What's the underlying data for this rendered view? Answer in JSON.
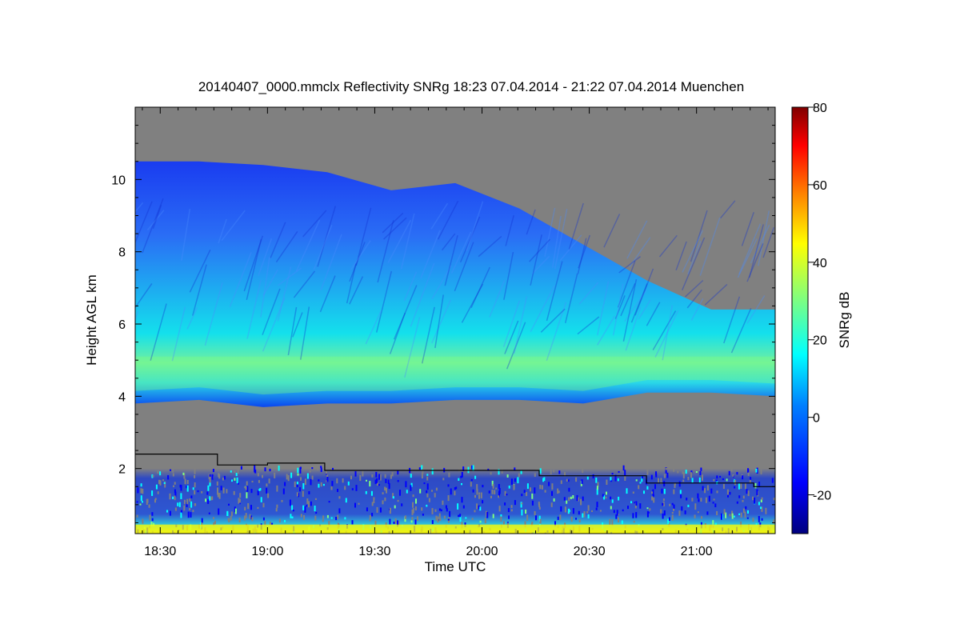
{
  "chart_data": {
    "type": "heatmap",
    "title": "20140407_0000.mmclx Reflectivity SNRg   18:23 07.04.2014 - 21:22 07.04.2014 Muenchen",
    "xlabel": "Time UTC",
    "ylabel": "Height AGL km",
    "x_ticks": [
      "18:30",
      "19:00",
      "19:30",
      "20:00",
      "20:30",
      "21:00"
    ],
    "x_tick_minutes": [
      30,
      60,
      90,
      120,
      150,
      180
    ],
    "x_range_minutes": [
      23,
      202
    ],
    "y_ticks": [
      2,
      4,
      6,
      8,
      10
    ],
    "ylim": [
      0.2,
      12
    ],
    "colorbar": {
      "label": "SNRg dB",
      "range": [
        -30,
        80
      ],
      "ticks": [
        -20,
        0,
        20,
        40,
        60,
        80
      ]
    },
    "background_color": "#808080",
    "cloud_layer": {
      "top_km": [
        10.5,
        10.5,
        10.4,
        10.2,
        9.7,
        9.9,
        9.2,
        8.2,
        7.2,
        6.4,
        6.4
      ],
      "base_km": [
        3.8,
        3.9,
        3.7,
        3.8,
        3.8,
        3.9,
        3.9,
        3.8,
        4.1,
        4.1,
        4.0
      ],
      "peak_km": 4.6,
      "peak_snr_db": 30
    },
    "boundary_line": {
      "time_minutes": [
        23,
        46,
        46,
        60,
        60,
        76,
        76,
        136,
        136,
        166,
        166,
        196,
        196,
        202
      ],
      "height_km": [
        2.4,
        2.4,
        2.1,
        2.1,
        2.15,
        2.15,
        1.95,
        1.95,
        1.8,
        1.8,
        1.6,
        1.6,
        1.5,
        1.5
      ]
    },
    "colors": {
      "c1": "#00007f",
      "c2": "#0000ff",
      "c3": "#007fff",
      "c4": "#00ffff",
      "c5": "#7fff7f",
      "c6": "#ffff00",
      "c7": "#ff7f00",
      "c8": "#ff0000",
      "c9": "#7f0000"
    }
  }
}
